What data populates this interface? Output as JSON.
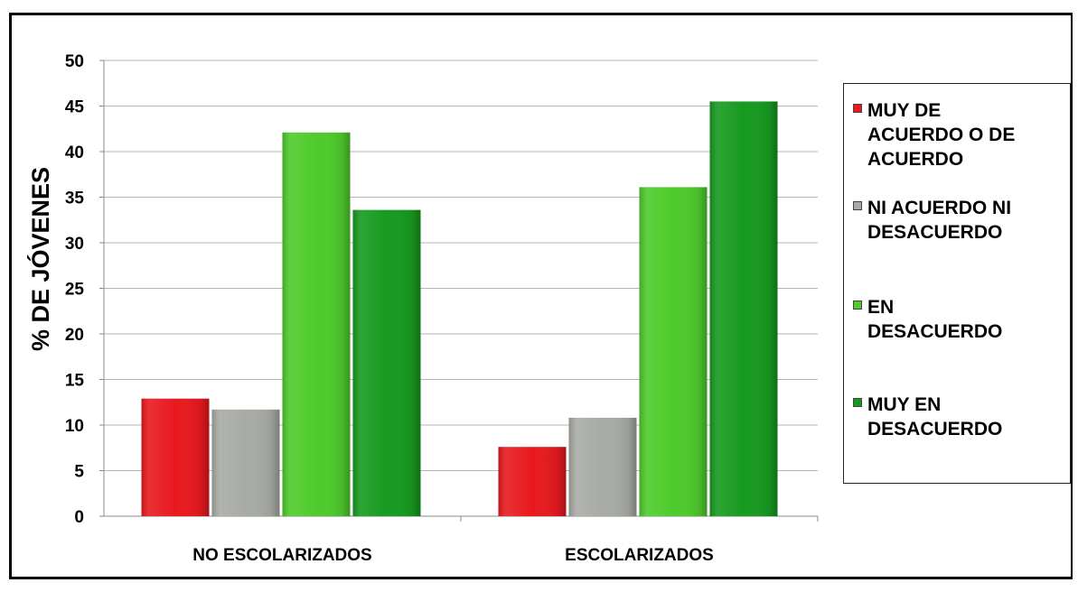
{
  "chart_data": {
    "type": "bar",
    "ylabel": "% DE JÓVENES",
    "ylim": [
      0,
      50
    ],
    "yticks": [
      "0",
      "5",
      "10",
      "15",
      "20",
      "25",
      "30",
      "35",
      "40",
      "45",
      "50"
    ],
    "grid": true,
    "legend_position": "right",
    "categories": [
      "NO ESCOLARIZADOS",
      "ESCOLARIZADOS"
    ],
    "series": [
      {
        "name": "MUY DE ACUERDO O DE ACUERDO",
        "color": "#e8191f",
        "values": [
          12.9,
          7.6
        ]
      },
      {
        "name": "NI ACUERDO NI DESACUERDO",
        "color": "#a8aba5",
        "values": [
          11.7,
          10.8
        ]
      },
      {
        "name": "EN DESACUERDO",
        "color": "#4ecb2b",
        "values": [
          42.1,
          36.1
        ]
      },
      {
        "name": "MUY EN DESACUERDO",
        "color": "#169a1f",
        "values": [
          33.6,
          45.5
        ]
      }
    ]
  },
  "legend": {
    "items": [
      {
        "label": "MUY DE\nACUERDO O DE\nACUERDO",
        "color": "#e8191f"
      },
      {
        "label": "NI ACUERDO NI\nDESACUERDO",
        "color": "#a8aba5"
      },
      {
        "label": "EN\nDESACUERDO",
        "color": "#4ecb2b"
      },
      {
        "label": "MUY EN\nDESACUERDO",
        "color": "#169a1f"
      }
    ]
  }
}
